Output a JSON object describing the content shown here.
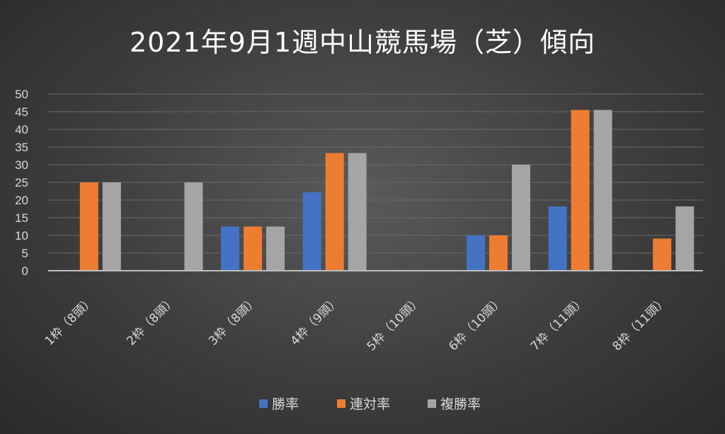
{
  "chart_data": {
    "type": "bar",
    "title": "2021年9月1週中山競馬場（芝）傾向",
    "categories": [
      "1枠（8頭）",
      "2枠（8頭）",
      "3枠（8頭）",
      "4枠（9頭）",
      "5枠（10頭）",
      "6枠（10頭）",
      "7枠（11頭）",
      "8枠（11頭）"
    ],
    "series": [
      {
        "name": "勝率",
        "color": "#4472c4",
        "values": [
          0,
          0,
          12.5,
          22.2,
          0,
          10,
          18.2,
          0
        ]
      },
      {
        "name": "連対率",
        "color": "#ed7d31",
        "values": [
          25,
          0,
          12.5,
          33.3,
          0,
          10,
          45.5,
          9.1
        ]
      },
      {
        "name": "複勝率",
        "color": "#a5a5a5",
        "values": [
          25,
          25,
          12.5,
          33.3,
          0,
          30,
          45.5,
          18.2
        ]
      }
    ],
    "ylim": [
      0,
      50
    ],
    "yticks": [
      0,
      5,
      10,
      15,
      20,
      25,
      30,
      35,
      40,
      45,
      50
    ],
    "grid": true,
    "legend": "bottom"
  }
}
